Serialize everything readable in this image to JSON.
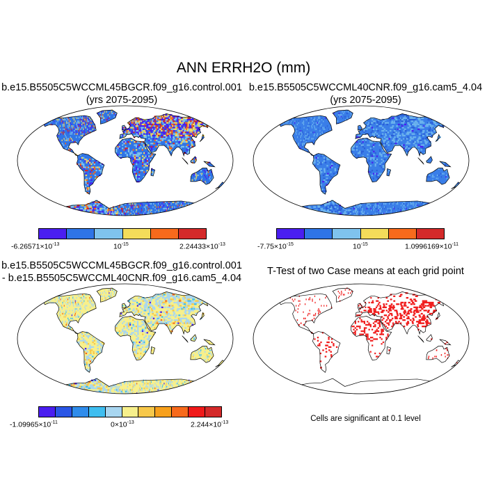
{
  "title": "ANN ERRH2O (mm)",
  "panels": [
    {
      "title_line1": "b.e15.B5505C5WCCML45BGCR.f09_g16.control.001",
      "title_line2": "(yrs 2075-2095)",
      "colorbar": {
        "colors": [
          "#4a1ef0",
          "#2f74e6",
          "#7fc3ee",
          "#f4dc5a",
          "#f76a1c",
          "#d42a2a"
        ],
        "label_min": "-6.26571×10",
        "label_min_exp": "-13",
        "label_mid": "10",
        "label_mid_exp": "-15",
        "label_max": "2.24433×10",
        "label_max_exp": "-13"
      },
      "map_style": "speckled-high"
    },
    {
      "title_line1": "b.e15.B5505C5WCCML40CNR.f09_g16.cam5_4.04",
      "title_line2": "(yrs 2075-2095)",
      "colorbar": {
        "colors": [
          "#4a1ef0",
          "#2f74e6",
          "#7fc3ee",
          "#f4dc5a",
          "#f76a1c",
          "#d42a2a"
        ],
        "label_min": "-7.75×10",
        "label_min_exp": "-15",
        "label_mid": "10",
        "label_mid_exp": "-15",
        "label_max": "1.0996169×10",
        "label_max_exp": "-11"
      },
      "map_style": "blue"
    },
    {
      "title_line1": "b.e15.B5505C5WCCML45BGCR.f09_g16.control.001",
      "title_line2": "- b.e15.B5505C5WCCML40CNR.f09_g16.cam5_4.04",
      "colorbar": {
        "colors": [
          "#4a1ef0",
          "#2a56e6",
          "#2f8ceb",
          "#3fbef0",
          "#a8d6f0",
          "#f7f08c",
          "#f7c84a",
          "#f7a01c",
          "#f76a1c",
          "#f01a1a",
          "#d42a2a"
        ],
        "label_min": "-1.09965×10",
        "label_min_exp": "-11",
        "label_mid": "0×10",
        "label_mid_exp": "-13",
        "label_max": "2.244×10",
        "label_max_exp": "-13"
      },
      "map_style": "diff"
    },
    {
      "title_line1": "T-Test of two Case means at each grid point",
      "title_line2": "",
      "note": "Cells are significant at 0.1 level",
      "map_style": "ttest"
    }
  ]
}
